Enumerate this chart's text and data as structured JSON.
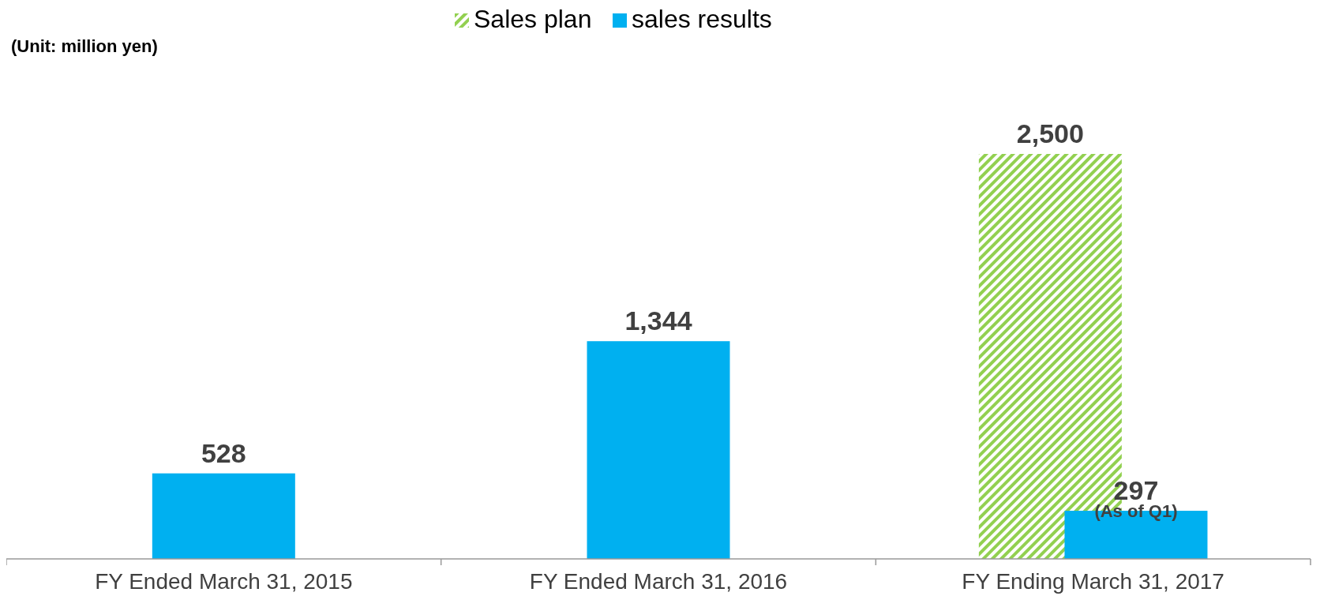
{
  "chart_data": {
    "type": "bar",
    "categories": [
      "FY Ended March 31, 2015",
      "FY Ended March 31, 2016",
      "FY Ending March 31, 2017"
    ],
    "series": [
      {
        "name": "Sales plan",
        "color": "#92d050",
        "values": [
          null,
          null,
          2500
        ],
        "value_labels": [
          null,
          null,
          "2,500"
        ]
      },
      {
        "name": "sales results",
        "color": "#00b0f0",
        "values": [
          528,
          1344,
          297
        ],
        "value_labels": [
          "528",
          "1,344",
          "297"
        ]
      }
    ],
    "annotations": [
      "(Unit: million yen)",
      {
        "text": "(As of Q1)",
        "x": "FY Ending March 31, 2017",
        "y": 297
      }
    ],
    "legend": "top",
    "grid": false
  }
}
